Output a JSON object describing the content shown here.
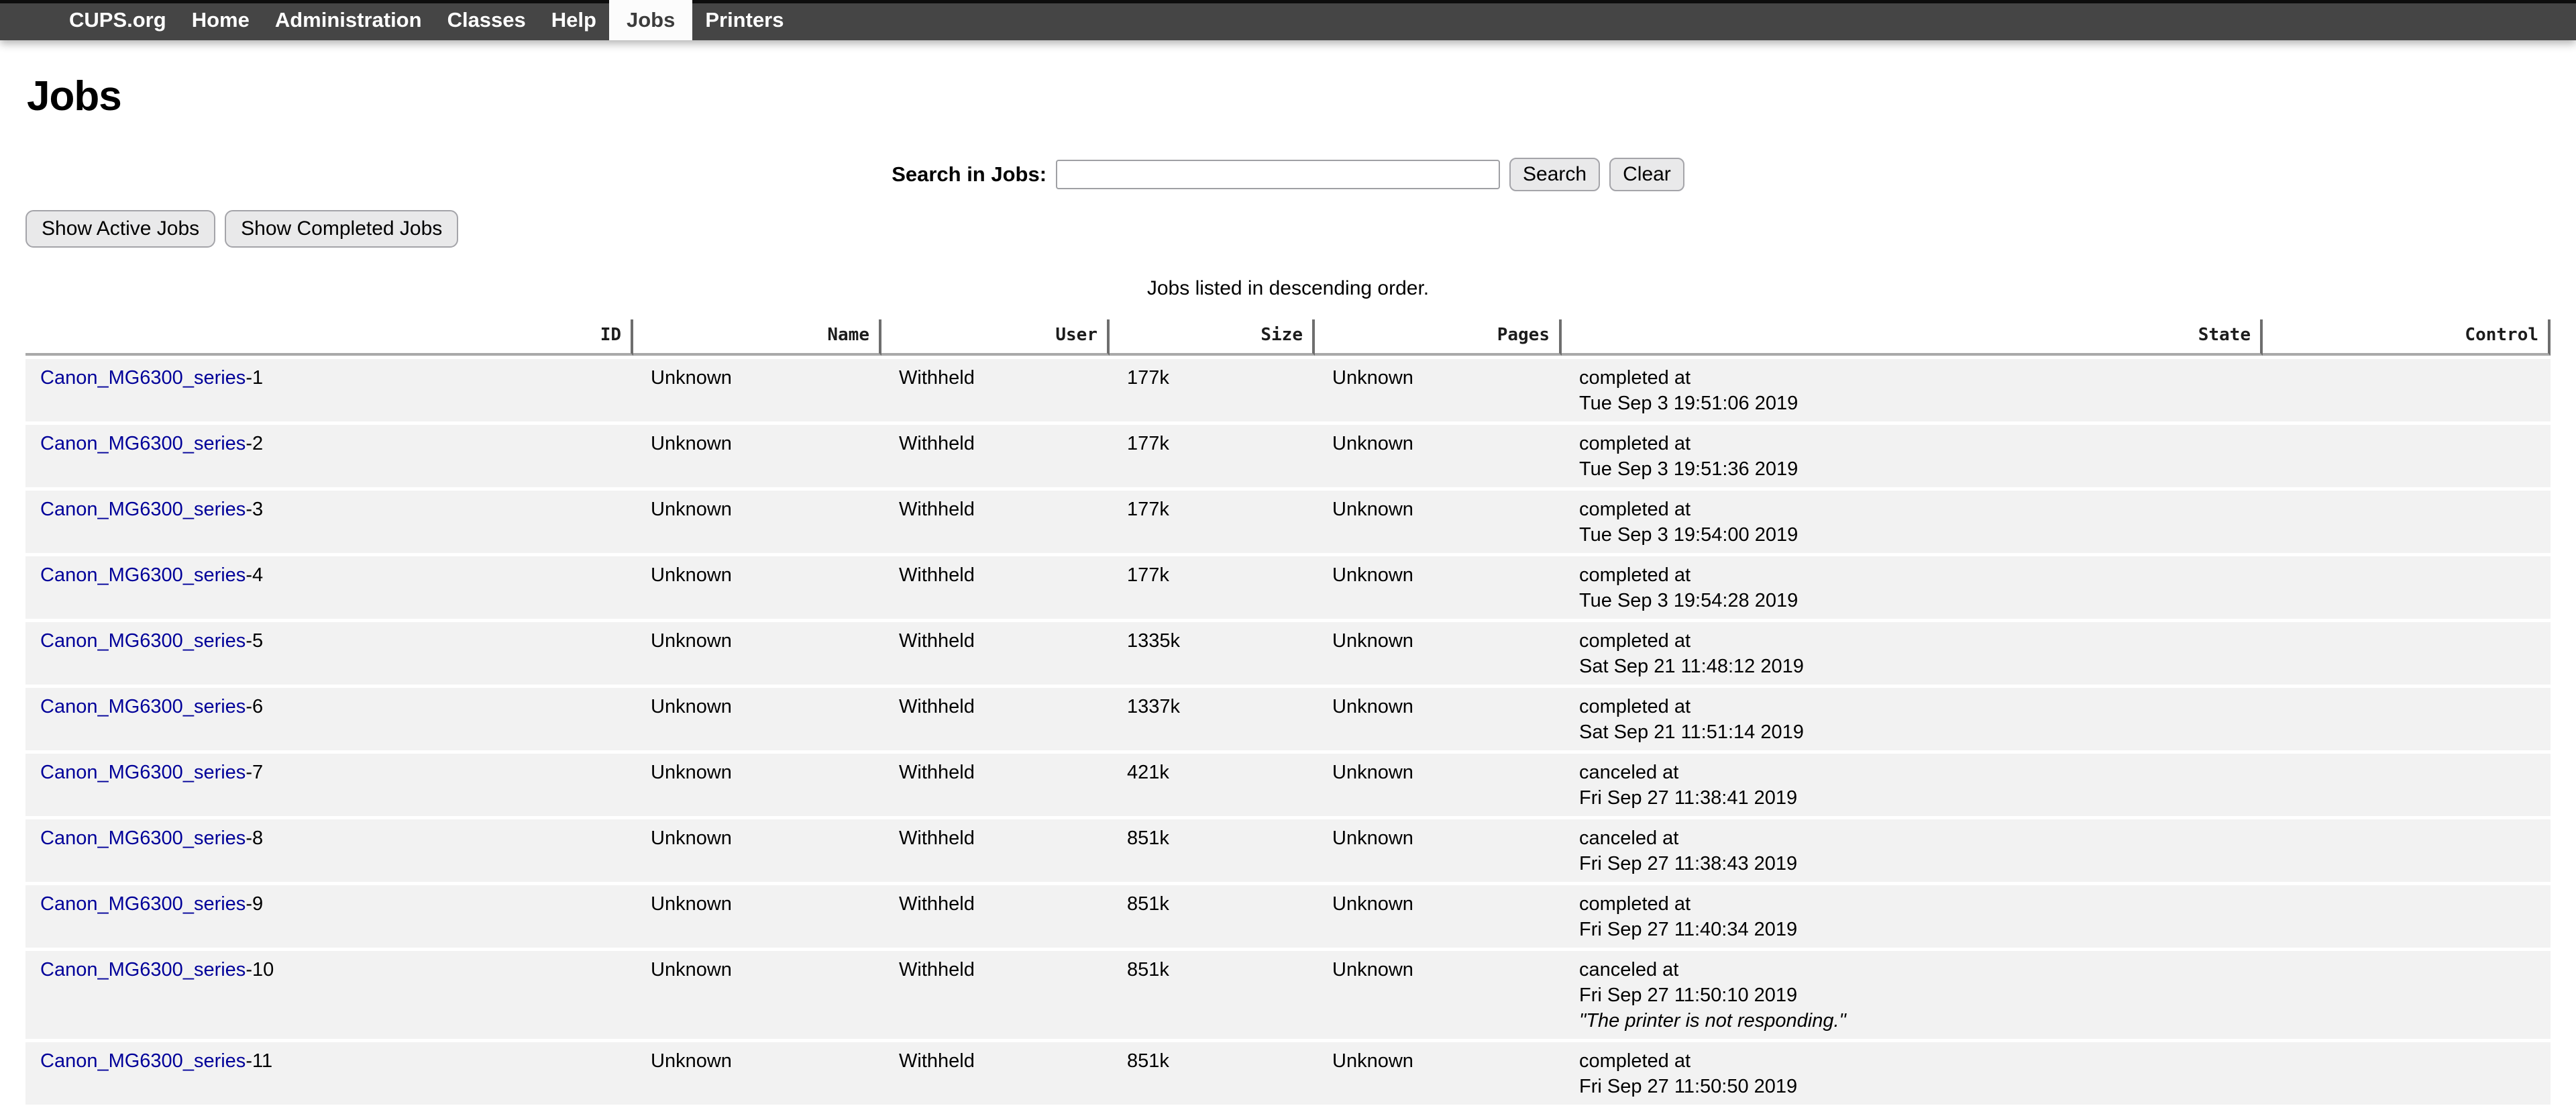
{
  "nav": {
    "items": [
      {
        "label": "CUPS.org",
        "active": false
      },
      {
        "label": "Home",
        "active": false
      },
      {
        "label": "Administration",
        "active": false
      },
      {
        "label": "Classes",
        "active": false
      },
      {
        "label": "Help",
        "active": false
      },
      {
        "label": "Jobs",
        "active": true
      },
      {
        "label": "Printers",
        "active": false
      }
    ]
  },
  "page": {
    "title": "Jobs",
    "search": {
      "label": "Search in Jobs:",
      "value": "",
      "search_button": "Search",
      "clear_button": "Clear"
    },
    "filter_buttons": {
      "active": "Show Active Jobs",
      "completed": "Show Completed Jobs"
    },
    "listing_note": "Jobs listed in descending order."
  },
  "table": {
    "columns": [
      "ID",
      "Name",
      "User",
      "Size",
      "Pages",
      "State",
      "Control"
    ],
    "rows": [
      {
        "id_link": "Canon_MG6300_series",
        "id_suffix": "-1",
        "name": "Unknown",
        "user": "Withheld",
        "size": "177k",
        "pages": "Unknown",
        "state_line1": "completed at",
        "state_line2": "Tue Sep 3 19:51:06 2019",
        "state_note": "",
        "control": ""
      },
      {
        "id_link": "Canon_MG6300_series",
        "id_suffix": "-2",
        "name": "Unknown",
        "user": "Withheld",
        "size": "177k",
        "pages": "Unknown",
        "state_line1": "completed at",
        "state_line2": "Tue Sep 3 19:51:36 2019",
        "state_note": "",
        "control": ""
      },
      {
        "id_link": "Canon_MG6300_series",
        "id_suffix": "-3",
        "name": "Unknown",
        "user": "Withheld",
        "size": "177k",
        "pages": "Unknown",
        "state_line1": "completed at",
        "state_line2": "Tue Sep 3 19:54:00 2019",
        "state_note": "",
        "control": ""
      },
      {
        "id_link": "Canon_MG6300_series",
        "id_suffix": "-4",
        "name": "Unknown",
        "user": "Withheld",
        "size": "177k",
        "pages": "Unknown",
        "state_line1": "completed at",
        "state_line2": "Tue Sep 3 19:54:28 2019",
        "state_note": "",
        "control": ""
      },
      {
        "id_link": "Canon_MG6300_series",
        "id_suffix": "-5",
        "name": "Unknown",
        "user": "Withheld",
        "size": "1335k",
        "pages": "Unknown",
        "state_line1": "completed at",
        "state_line2": "Sat Sep 21 11:48:12 2019",
        "state_note": "",
        "control": ""
      },
      {
        "id_link": "Canon_MG6300_series",
        "id_suffix": "-6",
        "name": "Unknown",
        "user": "Withheld",
        "size": "1337k",
        "pages": "Unknown",
        "state_line1": "completed at",
        "state_line2": "Sat Sep 21 11:51:14 2019",
        "state_note": "",
        "control": ""
      },
      {
        "id_link": "Canon_MG6300_series",
        "id_suffix": "-7",
        "name": "Unknown",
        "user": "Withheld",
        "size": "421k",
        "pages": "Unknown",
        "state_line1": "canceled at",
        "state_line2": "Fri Sep 27 11:38:41 2019",
        "state_note": "",
        "control": ""
      },
      {
        "id_link": "Canon_MG6300_series",
        "id_suffix": "-8",
        "name": "Unknown",
        "user": "Withheld",
        "size": "851k",
        "pages": "Unknown",
        "state_line1": "canceled at",
        "state_line2": "Fri Sep 27 11:38:43 2019",
        "state_note": "",
        "control": ""
      },
      {
        "id_link": "Canon_MG6300_series",
        "id_suffix": "-9",
        "name": "Unknown",
        "user": "Withheld",
        "size": "851k",
        "pages": "Unknown",
        "state_line1": "completed at",
        "state_line2": "Fri Sep 27 11:40:34 2019",
        "state_note": "",
        "control": ""
      },
      {
        "id_link": "Canon_MG6300_series",
        "id_suffix": "-10",
        "name": "Unknown",
        "user": "Withheld",
        "size": "851k",
        "pages": "Unknown",
        "state_line1": "canceled at",
        "state_line2": "Fri Sep 27 11:50:10 2019",
        "state_note": "\"The printer is not responding.\"",
        "control": ""
      },
      {
        "id_link": "Canon_MG6300_series",
        "id_suffix": "-11",
        "name": "Unknown",
        "user": "Withheld",
        "size": "851k",
        "pages": "Unknown",
        "state_line1": "completed at",
        "state_line2": "Fri Sep 27 11:50:50 2019",
        "state_note": "",
        "control": ""
      }
    ]
  },
  "colors": {
    "nav_background": "#454545",
    "nav_text": "#ffffff",
    "active_tab_background": "#fcfcfc",
    "link": "#000099",
    "row_background": "#f2f2f2",
    "header_separator": "#6e6e6e",
    "header_underline": "#a9a9a9"
  }
}
